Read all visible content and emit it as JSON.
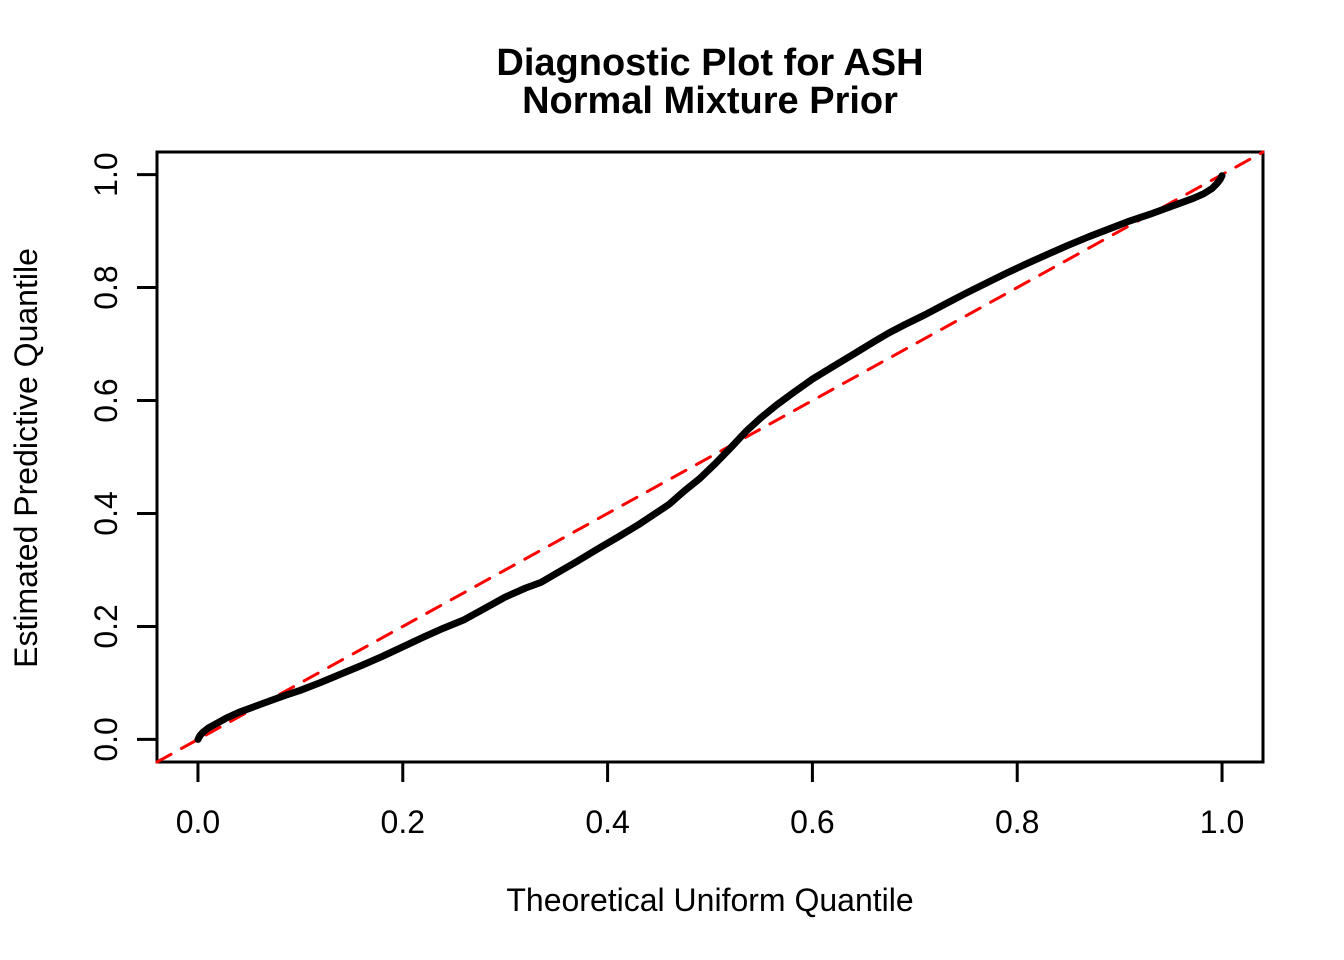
{
  "colors": {
    "background": "#FFFFFF",
    "curve": "#000000",
    "reference_line": "#FF0000",
    "axis": "#000000",
    "text": "#000000"
  },
  "chart_data": {
    "type": "line",
    "title": "Diagnostic Plot for ASH Normal Mixture Prior",
    "title_lines": [
      "Diagnostic Plot for ASH",
      "Normal Mixture Prior"
    ],
    "xlabel": "Theoretical Uniform Quantile",
    "ylabel": "Estimated Predictive Quantile",
    "xlim": [
      -0.04,
      1.04
    ],
    "ylim": [
      -0.04,
      1.04
    ],
    "grid": false,
    "legend": "none",
    "x_axis": {
      "tick_values": [
        0.0,
        0.2,
        0.4,
        0.6,
        0.8,
        1.0
      ],
      "tick_labels": [
        "0.0",
        "0.2",
        "0.4",
        "0.6",
        "0.8",
        "1.0"
      ]
    },
    "y_axis": {
      "tick_values": [
        0.0,
        0.2,
        0.4,
        0.6,
        0.8,
        1.0
      ],
      "tick_labels": [
        "0.0",
        "0.2",
        "0.4",
        "0.6",
        "0.8",
        "1.0"
      ]
    },
    "series": [
      {
        "name": "qq-curve",
        "description": "Estimated predictive quantiles vs theoretical uniform quantiles",
        "color": "#000000",
        "style": "solid",
        "line_width": 7,
        "points": [
          [
            0.0,
            0.0
          ],
          [
            0.002,
            0.007
          ],
          [
            0.005,
            0.013
          ],
          [
            0.01,
            0.02
          ],
          [
            0.018,
            0.028
          ],
          [
            0.028,
            0.038
          ],
          [
            0.04,
            0.048
          ],
          [
            0.055,
            0.058
          ],
          [
            0.07,
            0.068
          ],
          [
            0.085,
            0.078
          ],
          [
            0.1,
            0.087
          ],
          [
            0.12,
            0.101
          ],
          [
            0.14,
            0.116
          ],
          [
            0.16,
            0.131
          ],
          [
            0.18,
            0.147
          ],
          [
            0.2,
            0.164
          ],
          [
            0.22,
            0.181
          ],
          [
            0.24,
            0.197
          ],
          [
            0.26,
            0.212
          ],
          [
            0.28,
            0.232
          ],
          [
            0.3,
            0.252
          ],
          [
            0.32,
            0.268
          ],
          [
            0.335,
            0.278
          ],
          [
            0.35,
            0.294
          ],
          [
            0.37,
            0.315
          ],
          [
            0.39,
            0.337
          ],
          [
            0.41,
            0.358
          ],
          [
            0.43,
            0.38
          ],
          [
            0.445,
            0.398
          ],
          [
            0.46,
            0.416
          ],
          [
            0.475,
            0.44
          ],
          [
            0.49,
            0.462
          ],
          [
            0.505,
            0.488
          ],
          [
            0.52,
            0.516
          ],
          [
            0.535,
            0.545
          ],
          [
            0.55,
            0.57
          ],
          [
            0.565,
            0.592
          ],
          [
            0.58,
            0.612
          ],
          [
            0.6,
            0.638
          ],
          [
            0.62,
            0.66
          ],
          [
            0.64,
            0.682
          ],
          [
            0.66,
            0.704
          ],
          [
            0.675,
            0.72
          ],
          [
            0.69,
            0.734
          ],
          [
            0.71,
            0.752
          ],
          [
            0.73,
            0.771
          ],
          [
            0.75,
            0.79
          ],
          [
            0.77,
            0.808
          ],
          [
            0.79,
            0.826
          ],
          [
            0.81,
            0.843
          ],
          [
            0.83,
            0.859
          ],
          [
            0.85,
            0.875
          ],
          [
            0.87,
            0.89
          ],
          [
            0.89,
            0.904
          ],
          [
            0.91,
            0.918
          ],
          [
            0.93,
            0.93
          ],
          [
            0.945,
            0.94
          ],
          [
            0.96,
            0.95
          ],
          [
            0.972,
            0.958
          ],
          [
            0.982,
            0.966
          ],
          [
            0.99,
            0.975
          ],
          [
            0.995,
            0.984
          ],
          [
            0.998,
            0.991
          ],
          [
            1.0,
            0.998
          ]
        ]
      },
      {
        "name": "identity-reference",
        "description": "y = x reference line",
        "color": "#FF0000",
        "style": "dashed",
        "line_width": 3,
        "points": [
          [
            -0.04,
            -0.04
          ],
          [
            1.04,
            1.04
          ]
        ]
      }
    ]
  }
}
